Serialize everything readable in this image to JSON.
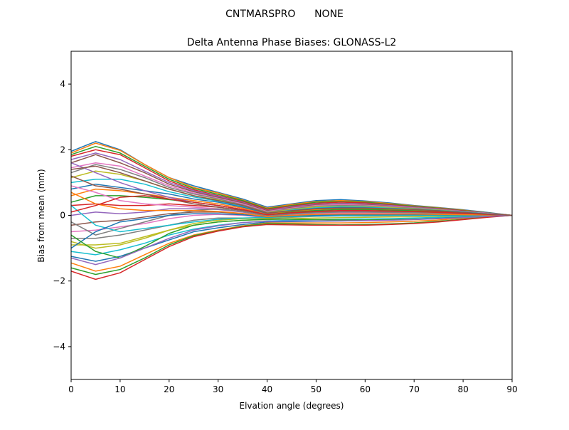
{
  "figure": {
    "suptitle": "CNTMARSPRO      NONE"
  },
  "chart_data": {
    "type": "line",
    "title": "Delta Antenna Phase Biases: GLONASS-L2",
    "xlabel": "Elvation angle (degrees)",
    "ylabel": "Bias from mean (mm)",
    "xlim": [
      0,
      90
    ],
    "ylim": [
      -5,
      5
    ],
    "xticks": [
      0,
      10,
      20,
      30,
      40,
      50,
      60,
      70,
      80,
      90
    ],
    "yticks": [
      -4,
      -2,
      0,
      2,
      4
    ],
    "xtick_labels": [
      "0",
      "10",
      "20",
      "30",
      "40",
      "50",
      "60",
      "70",
      "80",
      "90"
    ],
    "ytick_labels": [
      "−4",
      "−2",
      "0",
      "2",
      "4"
    ],
    "grid": false,
    "legend": "none",
    "colors": [
      "#1f77b4",
      "#ff7f0e",
      "#2ca02c",
      "#d62728",
      "#9467bd",
      "#8c564b",
      "#e377c2",
      "#7f7f7f",
      "#bcbd22",
      "#17becf"
    ],
    "x": [
      0,
      5,
      10,
      15,
      20,
      25,
      30,
      35,
      40,
      45,
      50,
      55,
      60,
      65,
      70,
      75,
      80,
      85,
      90
    ],
    "series": [
      {
        "values": [
          1.95,
          2.25,
          2.0,
          1.55,
          1.15,
          0.9,
          0.7,
          0.5,
          0.25,
          0.35,
          0.45,
          0.48,
          0.44,
          0.38,
          0.3,
          0.24,
          0.17,
          0.09,
          0
        ]
      },
      {
        "values": [
          1.9,
          2.2,
          1.98,
          1.55,
          1.15,
          0.85,
          0.68,
          0.47,
          0.22,
          0.33,
          0.42,
          0.45,
          0.42,
          0.36,
          0.29,
          0.23,
          0.16,
          0.08,
          0
        ]
      },
      {
        "values": [
          1.85,
          2.1,
          1.9,
          1.5,
          1.1,
          0.82,
          0.64,
          0.45,
          0.2,
          0.3,
          0.4,
          0.42,
          0.4,
          0.34,
          0.28,
          0.22,
          0.15,
          0.08,
          0
        ]
      },
      {
        "values": [
          1.8,
          2.0,
          1.85,
          1.45,
          1.05,
          0.78,
          0.6,
          0.42,
          0.18,
          0.28,
          0.37,
          0.4,
          0.38,
          0.32,
          0.26,
          0.21,
          0.14,
          0.07,
          0
        ]
      },
      {
        "values": [
          1.7,
          1.9,
          1.7,
          1.35,
          1.0,
          0.75,
          0.58,
          0.4,
          0.15,
          0.26,
          0.34,
          0.37,
          0.35,
          0.3,
          0.25,
          0.2,
          0.13,
          0.07,
          0
        ]
      },
      {
        "values": [
          1.6,
          1.85,
          1.6,
          1.3,
          0.95,
          0.72,
          0.55,
          0.38,
          0.14,
          0.24,
          0.32,
          0.35,
          0.33,
          0.28,
          0.24,
          0.19,
          0.13,
          0.06,
          0
        ]
      },
      {
        "values": [
          1.45,
          1.6,
          1.5,
          1.2,
          0.9,
          0.68,
          0.52,
          0.35,
          0.12,
          0.22,
          0.3,
          0.33,
          0.31,
          0.27,
          0.23,
          0.18,
          0.12,
          0.06,
          0
        ]
      },
      {
        "values": [
          1.3,
          1.55,
          1.4,
          1.15,
          0.85,
          0.65,
          0.5,
          0.32,
          0.1,
          0.2,
          0.28,
          0.3,
          0.29,
          0.25,
          0.22,
          0.17,
          0.11,
          0.05,
          0
        ]
      },
      {
        "values": [
          1.15,
          1.35,
          1.25,
          1.05,
          0.8,
          0.6,
          0.47,
          0.3,
          0.08,
          0.18,
          0.26,
          0.28,
          0.27,
          0.24,
          0.2,
          0.16,
          0.1,
          0.05,
          0
        ]
      },
      {
        "values": [
          1.0,
          1.1,
          1.1,
          0.95,
          0.72,
          0.56,
          0.43,
          0.27,
          0.06,
          0.16,
          0.23,
          0.26,
          0.25,
          0.22,
          0.19,
          0.15,
          0.1,
          0.05,
          0
        ]
      },
      {
        "values": [
          0.8,
          0.95,
          0.85,
          0.75,
          0.65,
          0.5,
          0.4,
          0.25,
          0.05,
          0.14,
          0.21,
          0.24,
          0.23,
          0.2,
          0.17,
          0.14,
          0.09,
          0.04,
          0
        ]
      },
      {
        "values": [
          0.6,
          0.8,
          0.75,
          0.65,
          0.55,
          0.45,
          0.35,
          0.22,
          0.03,
          0.12,
          0.18,
          0.21,
          0.2,
          0.18,
          0.16,
          0.12,
          0.08,
          0.04,
          0
        ]
      },
      {
        "values": [
          0.4,
          0.6,
          0.6,
          0.55,
          0.48,
          0.4,
          0.3,
          0.18,
          0.02,
          0.1,
          0.15,
          0.18,
          0.18,
          0.16,
          0.14,
          0.11,
          0.07,
          0.03,
          0
        ]
      },
      {
        "values": [
          0.3,
          0.35,
          0.3,
          0.3,
          0.35,
          0.3,
          0.25,
          0.15,
          0.0,
          0.08,
          0.12,
          0.15,
          0.15,
          0.13,
          0.12,
          0.1,
          0.06,
          0.03,
          0
        ]
      },
      {
        "values": [
          0.0,
          0.1,
          0.05,
          0.1,
          0.2,
          0.2,
          0.18,
          0.1,
          -0.02,
          0.05,
          0.08,
          0.1,
          0.1,
          0.09,
          0.09,
          0.07,
          0.05,
          0.02,
          0
        ]
      },
      {
        "values": [
          -0.3,
          -0.2,
          -0.15,
          -0.05,
          0.05,
          0.1,
          0.1,
          0.05,
          -0.05,
          0.02,
          0.05,
          0.06,
          0.06,
          0.06,
          0.06,
          0.05,
          0.03,
          0.02,
          0
        ]
      },
      {
        "values": [
          -0.5,
          -0.45,
          -0.35,
          -0.25,
          -0.1,
          0.0,
          0.03,
          0.0,
          -0.07,
          -0.02,
          0.01,
          0.02,
          0.02,
          0.03,
          0.03,
          0.03,
          0.02,
          0.01,
          0
        ]
      },
      {
        "values": [
          -0.7,
          -0.7,
          -0.6,
          -0.45,
          -0.3,
          -0.15,
          -0.08,
          -0.08,
          -0.1,
          -0.06,
          -0.03,
          -0.02,
          -0.02,
          -0.01,
          0.0,
          0.0,
          0.0,
          0.0,
          0
        ]
      },
      {
        "values": [
          -0.9,
          -0.9,
          -0.85,
          -0.65,
          -0.45,
          -0.3,
          -0.2,
          -0.15,
          -0.13,
          -0.1,
          -0.08,
          -0.07,
          -0.06,
          -0.05,
          -0.04,
          -0.03,
          -0.02,
          -0.01,
          0
        ]
      },
      {
        "values": [
          -1.1,
          -1.2,
          -1.05,
          -0.85,
          -0.6,
          -0.42,
          -0.3,
          -0.22,
          -0.17,
          -0.15,
          -0.13,
          -0.12,
          -0.11,
          -0.1,
          -0.08,
          -0.06,
          -0.04,
          -0.02,
          0
        ]
      },
      {
        "values": [
          -1.25,
          -1.4,
          -1.25,
          -1.0,
          -0.75,
          -0.5,
          -0.38,
          -0.28,
          -0.2,
          -0.19,
          -0.18,
          -0.17,
          -0.16,
          -0.14,
          -0.12,
          -0.09,
          -0.06,
          -0.03,
          0
        ]
      },
      {
        "values": [
          -1.45,
          -1.7,
          -1.55,
          -1.2,
          -0.85,
          -0.6,
          -0.45,
          -0.32,
          -0.23,
          -0.23,
          -0.23,
          -0.23,
          -0.22,
          -0.2,
          -0.18,
          -0.14,
          -0.09,
          -0.04,
          0
        ]
      },
      {
        "values": [
          -1.6,
          -1.8,
          -1.65,
          -1.3,
          -0.9,
          -0.62,
          -0.47,
          -0.33,
          -0.25,
          -0.26,
          -0.28,
          -0.29,
          -0.28,
          -0.26,
          -0.23,
          -0.18,
          -0.12,
          -0.05,
          0
        ]
      },
      {
        "values": [
          -1.7,
          -1.95,
          -1.75,
          -1.35,
          -0.95,
          -0.65,
          -0.48,
          -0.35,
          -0.28,
          -0.29,
          -0.3,
          -0.3,
          -0.3,
          -0.28,
          -0.25,
          -0.2,
          -0.13,
          -0.06,
          0
        ]
      },
      {
        "values": [
          1.6,
          1.3,
          1.0,
          0.75,
          0.55,
          0.4,
          0.3,
          0.18,
          0.02,
          0.08,
          0.12,
          0.12,
          0.12,
          0.11,
          0.1,
          0.08,
          0.05,
          0.02,
          0
        ]
      },
      {
        "values": [
          1.2,
          0.9,
          0.8,
          0.65,
          0.5,
          0.35,
          0.25,
          0.15,
          0.0,
          0.05,
          0.1,
          0.1,
          0.1,
          0.1,
          0.09,
          0.07,
          0.04,
          0.02,
          0
        ]
      },
      {
        "values": [
          0.9,
          0.7,
          0.45,
          0.35,
          0.3,
          0.25,
          0.2,
          0.12,
          -0.02,
          0.03,
          0.06,
          0.07,
          0.07,
          0.07,
          0.06,
          0.05,
          0.03,
          0.01,
          0
        ]
      },
      {
        "values": [
          -0.2,
          -0.6,
          -0.4,
          -0.2,
          0.0,
          0.15,
          0.2,
          0.12,
          -0.02,
          0.04,
          0.08,
          0.1,
          0.1,
          0.09,
          0.08,
          0.06,
          0.04,
          0.02,
          0
        ]
      },
      {
        "values": [
          -0.8,
          -1.0,
          -0.9,
          -0.7,
          -0.45,
          -0.25,
          -0.15,
          -0.1,
          -0.08,
          -0.05,
          -0.02,
          0.0,
          0.0,
          0.0,
          0.01,
          0.01,
          0.01,
          0.0,
          0
        ]
      },
      {
        "values": [
          0.3,
          -0.3,
          -0.5,
          -0.4,
          -0.3,
          -0.2,
          -0.12,
          -0.08,
          -0.06,
          -0.04,
          -0.02,
          -0.01,
          -0.01,
          0.0,
          0.0,
          0.0,
          0.0,
          0.0,
          0
        ]
      },
      {
        "values": [
          -1.0,
          -0.5,
          -0.2,
          -0.1,
          0.0,
          0.05,
          0.05,
          0.02,
          -0.05,
          -0.02,
          0.0,
          0.02,
          0.02,
          0.02,
          0.02,
          0.02,
          0.01,
          0.01,
          0
        ]
      },
      {
        "values": [
          0.7,
          0.35,
          0.2,
          0.15,
          0.15,
          0.15,
          0.12,
          0.06,
          -0.04,
          0.0,
          0.03,
          0.04,
          0.04,
          0.04,
          0.04,
          0.03,
          0.02,
          0.01,
          0
        ]
      },
      {
        "values": [
          -0.6,
          -1.1,
          -1.3,
          -0.95,
          -0.55,
          -0.3,
          -0.2,
          -0.15,
          -0.12,
          -0.12,
          -0.13,
          -0.14,
          -0.14,
          -0.13,
          -0.12,
          -0.1,
          -0.07,
          -0.03,
          0
        ]
      },
      {
        "values": [
          0.1,
          0.3,
          0.55,
          0.6,
          0.5,
          0.4,
          0.3,
          0.18,
          0.02,
          0.08,
          0.12,
          0.14,
          0.14,
          0.13,
          0.12,
          0.09,
          0.06,
          0.03,
          0
        ]
      },
      {
        "values": [
          -1.3,
          -1.5,
          -1.3,
          -1.0,
          -0.7,
          -0.45,
          -0.32,
          -0.22,
          -0.18,
          -0.17,
          -0.17,
          -0.17,
          -0.16,
          -0.15,
          -0.13,
          -0.1,
          -0.07,
          -0.03,
          0
        ]
      },
      {
        "values": [
          1.4,
          1.5,
          1.3,
          1.05,
          0.8,
          0.6,
          0.45,
          0.3,
          0.07,
          0.14,
          0.2,
          0.22,
          0.22,
          0.2,
          0.18,
          0.14,
          0.09,
          0.04,
          0
        ]
      }
    ]
  }
}
